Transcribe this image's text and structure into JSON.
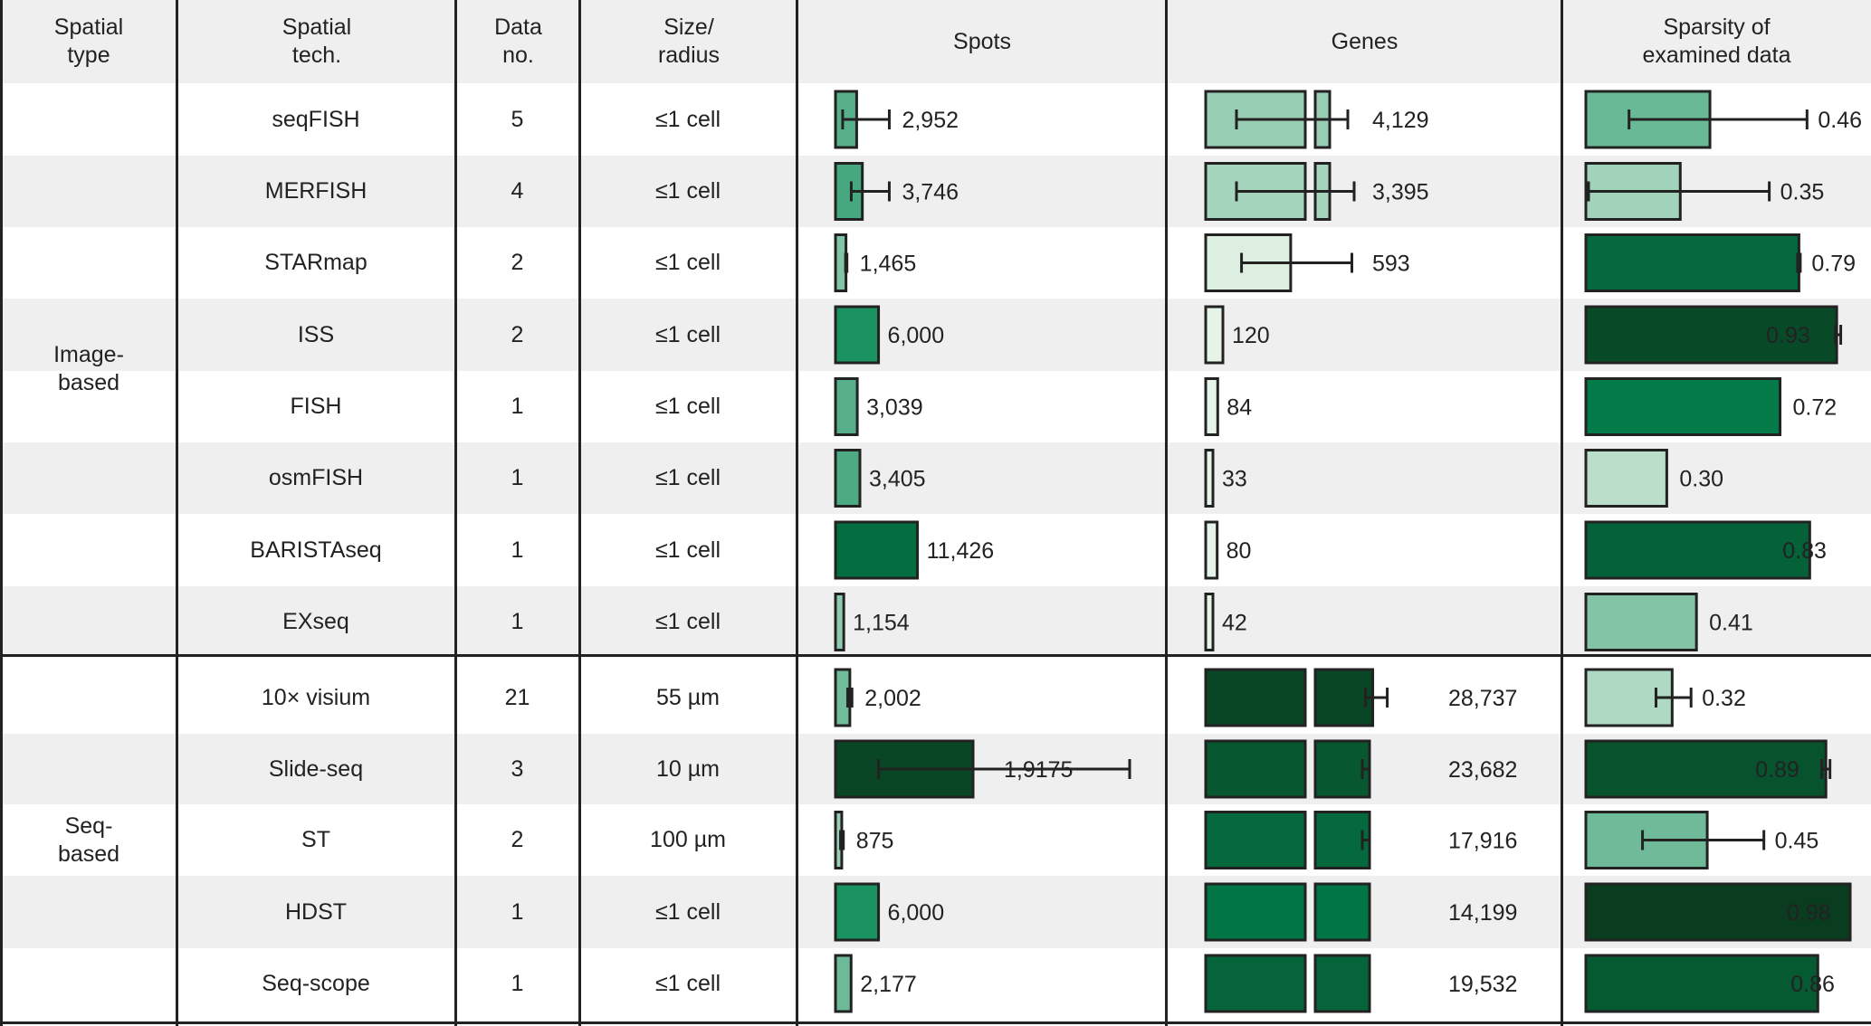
{
  "headers": {
    "spatial_type": [
      "Spatial",
      "type"
    ],
    "spatial_tech": [
      "Spatial",
      "tech."
    ],
    "data_no": [
      "Data",
      "no."
    ],
    "size_radius": [
      "Size/",
      "radius"
    ],
    "spots": "Spots",
    "genes": "Genes",
    "sparsity": [
      "Sparsity of",
      "examined data"
    ]
  },
  "groups": [
    {
      "name": [
        "Image-",
        "based"
      ]
    },
    {
      "name": [
        "Seq-",
        "based"
      ]
    }
  ],
  "colors": {
    "border": "#222222",
    "band": "#efefef",
    "greens_light": "#e8f4e9",
    "greens_dark": "#0a3d1f"
  },
  "chart_data": {
    "type": "table",
    "columns": [
      "Spatial type",
      "Spatial tech.",
      "Data no.",
      "Size/radius",
      "Spots",
      "Genes",
      "Sparsity of examined data"
    ],
    "rows": [
      {
        "group": 0,
        "tech": "seqFISH",
        "data_no": "5",
        "size": "≤1 cell",
        "spots": 2952,
        "spots_label": "2,952",
        "spots_err": [
          1000,
          7500
        ],
        "genes": 4129,
        "genes_label": "4,129",
        "genes_mean": 3000,
        "genes_err": [
          1200,
          4700
        ],
        "genes_broken": true,
        "sparsity": 0.46,
        "sparsity_label": "0.46",
        "sparsity_err": [
          0.16,
          0.82
        ]
      },
      {
        "group": 0,
        "tech": "MERFISH",
        "data_no": "4",
        "size": "≤1 cell",
        "spots": 3746,
        "spots_label": "3,746",
        "spots_err": [
          2200,
          7500
        ],
        "genes": 3395,
        "genes_label": "3,395",
        "genes_mean": 3000,
        "genes_err": [
          1200,
          5000
        ],
        "genes_broken": true,
        "sparsity": 0.35,
        "sparsity_label": "0.35",
        "sparsity_err": [
          0.01,
          0.68
        ]
      },
      {
        "group": 0,
        "tech": "STARmap",
        "data_no": "2",
        "size": "≤1 cell",
        "spots": 1465,
        "spots_label": "1,465",
        "spots_err": [
          1400,
          1600
        ],
        "genes": 593,
        "genes_label": "593",
        "genes_err": [
          250,
          1020
        ],
        "genes_broken": false,
        "sparsity": 0.79,
        "sparsity_label": "0.79",
        "sparsity_err": [
          0.785,
          0.795
        ]
      },
      {
        "group": 0,
        "tech": "ISS",
        "data_no": "2",
        "size": "≤1 cell",
        "spots": 6000,
        "spots_label": "6,000",
        "genes": 120,
        "genes_label": "120",
        "genes_broken": false,
        "sparsity": 0.93,
        "sparsity_label": "0.93",
        "sparsity_err": [
          0.925,
          0.945
        ]
      },
      {
        "group": 0,
        "tech": "FISH",
        "data_no": "1",
        "size": "≤1 cell",
        "spots": 3039,
        "spots_label": "3,039",
        "genes": 84,
        "genes_label": "84",
        "genes_broken": false,
        "sparsity": 0.72,
        "sparsity_label": "0.72"
      },
      {
        "group": 0,
        "tech": "osmFISH",
        "data_no": "1",
        "size": "≤1 cell",
        "spots": 3405,
        "spots_label": "3,405",
        "genes": 33,
        "genes_label": "33",
        "genes_broken": false,
        "sparsity": 0.3,
        "sparsity_label": "0.30"
      },
      {
        "group": 0,
        "tech": "BARISTAseq",
        "data_no": "1",
        "size": "≤1 cell",
        "spots": 11426,
        "spots_label": "11,426",
        "genes": 80,
        "genes_label": "80",
        "genes_broken": false,
        "sparsity": 0.83,
        "sparsity_label": "0.83"
      },
      {
        "group": 0,
        "tech": "EXseq",
        "data_no": "1",
        "size": "≤1 cell",
        "spots": 1154,
        "spots_label": "1,154",
        "genes": 42,
        "genes_label": "42",
        "genes_broken": false,
        "sparsity": 0.41,
        "sparsity_label": "0.41"
      },
      {
        "group": 1,
        "tech": "10× visium",
        "data_no": "21",
        "size": "55 µm",
        "spots": 2002,
        "spots_label": "2,002",
        "spots_err": [
          1700,
          2300
        ],
        "genes": 28737,
        "genes_label": "28,737",
        "genes_mean": 26000,
        "genes_err": [
          24500,
          28500
        ],
        "genes_broken": true,
        "sparsity": 0.32,
        "sparsity_label": "0.32",
        "sparsity_err": [
          0.26,
          0.39
        ]
      },
      {
        "group": 1,
        "tech": "Slide-seq",
        "data_no": "3",
        "size": "10 µm",
        "spots": 19175,
        "spots_label": "1,9175",
        "spots_err": [
          6000,
          41000
        ],
        "genes": 23682,
        "genes_label": "23,682",
        "genes_err": [
          23300,
          24100
        ],
        "genes_broken": true,
        "sparsity": 0.89,
        "sparsity_label": "0.89",
        "sparsity_err": [
          0.875,
          0.905
        ]
      },
      {
        "group": 1,
        "tech": "ST",
        "data_no": "2",
        "size": "100 µm",
        "spots": 875,
        "spots_label": "875",
        "spots_err": [
          700,
          1100
        ],
        "genes": 17916,
        "genes_label": "17,916",
        "genes_err": [
          17400,
          18300
        ],
        "genes_broken": true,
        "sparsity": 0.45,
        "sparsity_label": "0.45",
        "sparsity_err": [
          0.21,
          0.66
        ]
      },
      {
        "group": 1,
        "tech": "HDST",
        "data_no": "1",
        "size": "≤1 cell",
        "spots": 6000,
        "spots_label": "6,000",
        "genes": 14199,
        "genes_label": "14,199",
        "genes_broken": true,
        "sparsity": 0.98,
        "sparsity_label": "0.98"
      },
      {
        "group": 1,
        "tech": "Seq-scope",
        "data_no": "1",
        "size": "≤1 cell",
        "spots": 2177,
        "spots_label": "2,177",
        "genes": 19532,
        "genes_label": "19,532",
        "genes_broken": true,
        "sparsity": 0.86,
        "sparsity_label": "0.86"
      }
    ]
  }
}
